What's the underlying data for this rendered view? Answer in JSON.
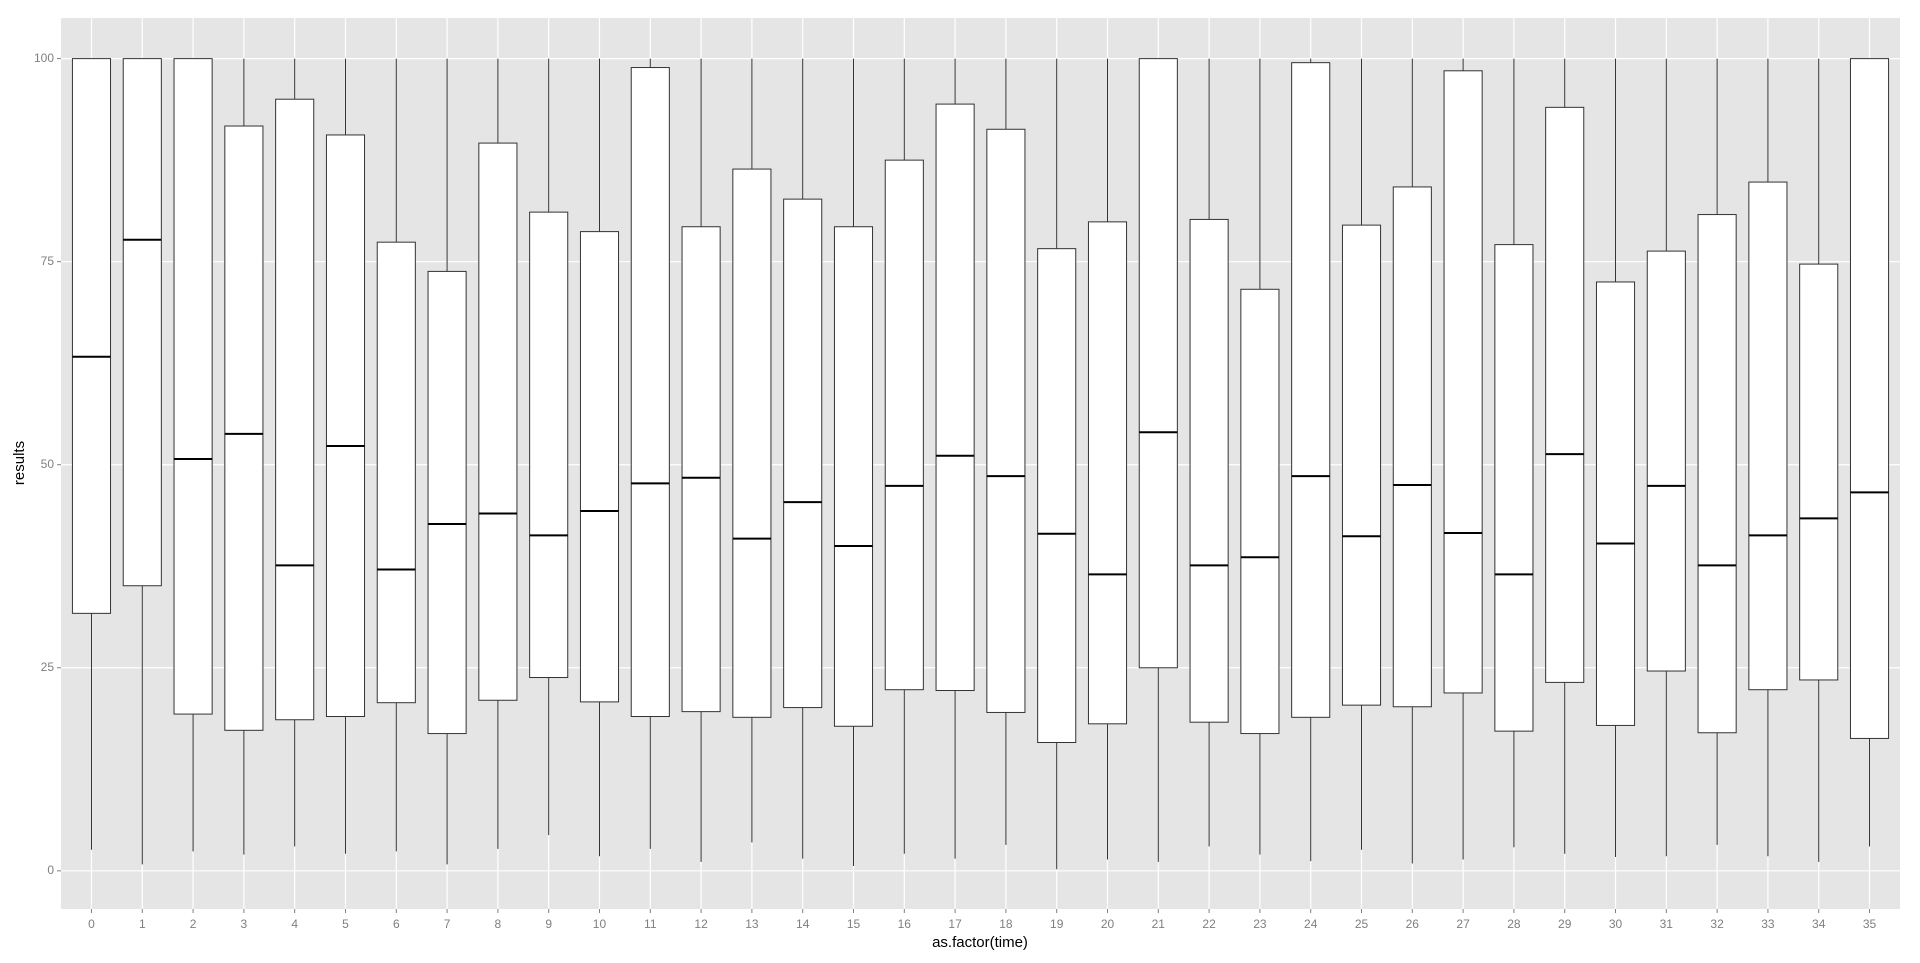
{
  "chart_data": {
    "type": "boxplot",
    "x_label": "as.factor(time)",
    "y_label": "results",
    "categories": [
      "0",
      "1",
      "2",
      "3",
      "4",
      "5",
      "6",
      "7",
      "8",
      "9",
      "10",
      "11",
      "12",
      "13",
      "14",
      "15",
      "16",
      "17",
      "18",
      "19",
      "20",
      "21",
      "22",
      "23",
      "24",
      "25",
      "26",
      "27",
      "28",
      "29",
      "30",
      "31",
      "32",
      "33",
      "34",
      "35"
    ],
    "low": [
      2.6,
      0.8,
      2.4,
      2.0,
      3.0,
      2.1,
      2.4,
      0.8,
      2.7,
      4.4,
      1.8,
      2.7,
      1.1,
      3.5,
      1.5,
      0.6,
      2.1,
      1.5,
      3.2,
      0.2,
      1.4,
      1.1,
      3.0,
      2.0,
      1.2,
      2.6,
      0.9,
      1.4,
      2.9,
      2.1,
      1.7,
      1.8,
      3.2,
      1.8,
      1.1,
      3.0
    ],
    "q1": [
      31.7,
      35.1,
      19.3,
      17.3,
      18.6,
      19.0,
      20.7,
      16.9,
      21.0,
      23.8,
      20.8,
      19.0,
      19.6,
      18.9,
      20.1,
      17.8,
      22.3,
      22.2,
      19.5,
      15.8,
      18.1,
      25.0,
      18.3,
      16.9,
      18.9,
      20.4,
      20.2,
      21.9,
      17.2,
      23.2,
      17.9,
      24.6,
      17.0,
      22.3,
      23.5,
      16.3
    ],
    "median": [
      63.3,
      77.7,
      50.7,
      53.8,
      37.6,
      52.3,
      37.1,
      42.7,
      44.0,
      41.3,
      44.3,
      47.7,
      48.4,
      40.9,
      45.4,
      40.0,
      47.4,
      51.1,
      48.6,
      41.5,
      36.5,
      54.0,
      37.6,
      38.6,
      48.6,
      41.2,
      47.5,
      41.6,
      36.5,
      51.3,
      40.3,
      47.4,
      37.6,
      41.3,
      43.4,
      46.6
    ],
    "q3": [
      100,
      100,
      100,
      91.7,
      95.0,
      90.6,
      77.4,
      73.8,
      89.6,
      81.1,
      78.7,
      98.9,
      79.3,
      86.4,
      82.7,
      79.3,
      87.5,
      94.4,
      91.3,
      76.6,
      79.9,
      100,
      80.2,
      71.6,
      99.5,
      79.5,
      84.2,
      98.5,
      77.1,
      94.0,
      72.5,
      76.3,
      80.8,
      84.8,
      74.7,
      100
    ],
    "high": [
      100,
      100,
      100,
      100,
      100,
      100,
      100,
      100,
      100,
      100,
      100,
      100,
      100,
      100,
      100,
      100,
      100,
      100,
      100,
      100,
      100,
      100,
      100,
      100,
      100,
      100,
      100,
      100,
      100,
      100,
      100,
      100,
      100,
      100,
      100,
      100
    ],
    "box_fill": "#ffffff",
    "box_stroke": "#333333",
    "panel_color": "#e5e5e5",
    "ylim": [
      -4.7,
      105
    ],
    "yticks": [
      0,
      25,
      50,
      75,
      100
    ],
    "grid": true
  }
}
